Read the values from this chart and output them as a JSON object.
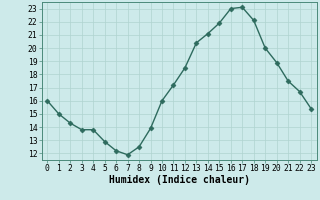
{
  "x": [
    0,
    1,
    2,
    3,
    4,
    5,
    6,
    7,
    8,
    9,
    10,
    11,
    12,
    13,
    14,
    15,
    16,
    17,
    18,
    19,
    20,
    21,
    22,
    23
  ],
  "y": [
    16,
    15,
    14.3,
    13.8,
    13.8,
    12.9,
    12.2,
    11.9,
    12.5,
    13.9,
    16.0,
    17.2,
    18.5,
    20.4,
    21.1,
    21.9,
    23.0,
    23.1,
    22.1,
    20.0,
    18.9,
    17.5,
    16.7,
    15.4
  ],
  "line_color": "#2e6b5e",
  "marker": "D",
  "marker_size": 2.5,
  "bg_color": "#cdeaea",
  "grid_color": "#b0d4d0",
  "xlabel": "Humidex (Indice chaleur)",
  "ylabel_ticks": [
    12,
    13,
    14,
    15,
    16,
    17,
    18,
    19,
    20,
    21,
    22,
    23
  ],
  "xlim": [
    -0.5,
    23.5
  ],
  "ylim": [
    11.5,
    23.5
  ],
  "xticks": [
    0,
    1,
    2,
    3,
    4,
    5,
    6,
    7,
    8,
    9,
    10,
    11,
    12,
    13,
    14,
    15,
    16,
    17,
    18,
    19,
    20,
    21,
    22,
    23
  ],
  "tick_fontsize": 5.8,
  "label_fontsize": 7.0,
  "line_width": 1.0
}
